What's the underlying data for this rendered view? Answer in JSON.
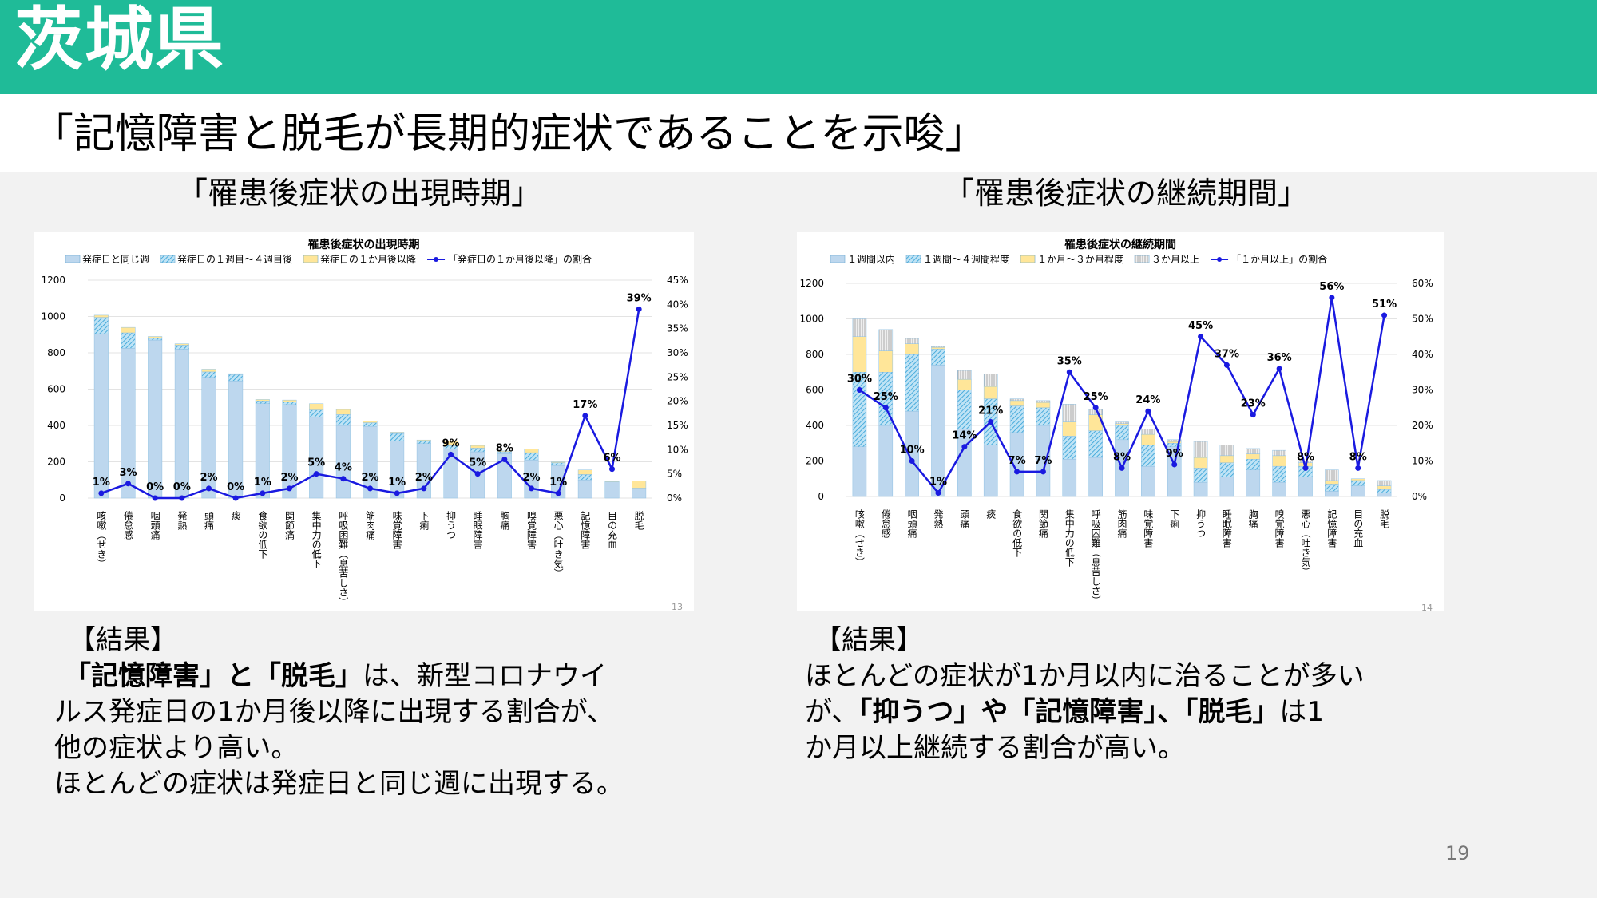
{
  "header": {
    "prefecture": "茨城県",
    "slide_title": "「記憶障害と脱毛が長期的症状であることを示唆」"
  },
  "left_section_title": "「罹患後症状の出現時期」",
  "right_section_title": "「罹患後症状の継続期間」",
  "chart_data": [
    {
      "type": "bar",
      "stacked": true,
      "title": "罹患後症状の出現時期",
      "categories": [
        "咳嗽（せき）",
        "倦怠感",
        "咽頭痛",
        "発熱",
        "頭痛",
        "痰",
        "食欲の低下",
        "関節痛",
        "集中力の低下",
        "呼吸困難（息苦しさ）",
        "筋肉痛",
        "味覚障害",
        "下痢",
        "抑うつ",
        "睡眠障害",
        "胸痛",
        "嗅覚障害",
        "悪心（吐き気）",
        "記憶障害",
        "目の充血",
        "脱毛"
      ],
      "series": [
        {
          "name": "発症日と同じ週",
          "color": "#bdd7ee",
          "values": [
            905,
            825,
            870,
            820,
            665,
            645,
            520,
            515,
            445,
            400,
            395,
            315,
            300,
            270,
            255,
            245,
            210,
            180,
            100,
            90,
            55
          ]
        },
        {
          "name": "発症日の１週目～４週目後",
          "color": "#5bc0de",
          "pattern": "hatch",
          "values": [
            90,
            85,
            10,
            22,
            30,
            35,
            15,
            15,
            40,
            60,
            20,
            40,
            15,
            20,
            20,
            10,
            40,
            15,
            30,
            0,
            0
          ]
        },
        {
          "name": "発症日の１か月後以降",
          "color": "#ffe699",
          "values": [
            12,
            30,
            10,
            8,
            15,
            5,
            8,
            10,
            35,
            28,
            10,
            8,
            5,
            25,
            15,
            5,
            20,
            5,
            25,
            5,
            40
          ]
        }
      ],
      "line": {
        "name": "「発症日の１か月後以降」の割合",
        "color": "#1a1ae0",
        "values": [
          1,
          3,
          0,
          0,
          2,
          0,
          1,
          2,
          5,
          4,
          2,
          1,
          2,
          9,
          5,
          8,
          2,
          1,
          17,
          6,
          39
        ],
        "labels": [
          "1%",
          "3%",
          "0%",
          "0%",
          "2%",
          "0%",
          "1%",
          "2%",
          "5%",
          "4%",
          "2%",
          "1%",
          "2%",
          "9%",
          "5%",
          "8%",
          "2%",
          "1%",
          "17%",
          "6%",
          "39%"
        ]
      },
      "ylim": [
        0,
        1200
      ],
      "yticks": [
        0,
        200,
        400,
        600,
        800,
        1000,
        1200
      ],
      "y2lim": [
        0,
        45
      ],
      "y2ticks": [
        "0%",
        "5%",
        "10%",
        "15%",
        "20%",
        "25%",
        "30%",
        "35%",
        "40%",
        "45%"
      ],
      "page_label": "13"
    },
    {
      "type": "bar",
      "stacked": true,
      "title": "罹患後症状の継続期間",
      "categories": [
        "咳嗽（せき）",
        "倦怠感",
        "咽頭痛",
        "発熱",
        "頭痛",
        "痰",
        "食欲の低下",
        "関節痛",
        "集中力の低下",
        "呼吸困難（息苦しさ）",
        "筋肉痛",
        "味覚障害",
        "下痢",
        "抑うつ",
        "睡眠障害",
        "胸痛",
        "嗅覚障害",
        "悪心（吐き気）",
        "記憶障害",
        "目の充血",
        "脱毛"
      ],
      "series": [
        {
          "name": "１週間以内",
          "color": "#bdd7ee",
          "values": [
            280,
            400,
            480,
            740,
            380,
            290,
            360,
            400,
            210,
            220,
            320,
            170,
            280,
            80,
            110,
            150,
            80,
            110,
            30,
            60,
            20
          ]
        },
        {
          "name": "１週間～４週間程度",
          "color": "#5bc0de",
          "pattern": "hatch",
          "values": [
            420,
            300,
            320,
            90,
            220,
            260,
            150,
            100,
            130,
            150,
            80,
            120,
            20,
            80,
            80,
            60,
            90,
            60,
            40,
            30,
            20
          ]
        },
        {
          "name": "１か月～３か月程度",
          "color": "#ffe699",
          "values": [
            200,
            120,
            60,
            10,
            60,
            70,
            30,
            30,
            80,
            90,
            10,
            60,
            10,
            60,
            40,
            30,
            60,
            20,
            20,
            10,
            20
          ]
        },
        {
          "name": "３か月以上",
          "color": "#d9d9d9",
          "pattern": "vlines",
          "values": [
            100,
            120,
            30,
            5,
            50,
            70,
            10,
            10,
            100,
            30,
            10,
            30,
            10,
            90,
            60,
            30,
            30,
            10,
            60,
            0,
            30
          ]
        }
      ],
      "line": {
        "name": "「１か月以上」の割合",
        "color": "#1a1ae0",
        "values": [
          30,
          25,
          10,
          1,
          14,
          21,
          7,
          7,
          35,
          25,
          8,
          24,
          9,
          45,
          37,
          23,
          36,
          8,
          56,
          8,
          51
        ],
        "labels": [
          "30%",
          "25%",
          "10%",
          "1%",
          "14%",
          "21%",
          "7%",
          "7%",
          "35%",
          "25%",
          "8%",
          "24%",
          "9%",
          "45%",
          "37%",
          "23%",
          "36%",
          "8%",
          "56%",
          "8%",
          "51%"
        ]
      },
      "ylim": [
        0,
        1200
      ],
      "yticks": [
        0,
        200,
        400,
        600,
        800,
        1000,
        1200
      ],
      "y2lim": [
        0,
        60
      ],
      "y2ticks": [
        "0%",
        "10%",
        "20%",
        "30%",
        "40%",
        "50%",
        "60%"
      ],
      "page_label": "14"
    }
  ],
  "left_result": {
    "heading": "【結果】",
    "bold1": "「記憶障害」と「脱毛」",
    "text1": "は、新型コロナウイ",
    "text2": "ルス発症日の1か月後以降に出現する割合が、",
    "text3": "他の症状より高い。",
    "text4": "ほとんどの症状は発症日と同じ週に出現する。"
  },
  "right_result": {
    "heading": "【結果】",
    "text1": "ほとんどの症状が1か月以内に治ることが多い",
    "text2a": "が、",
    "bold1": "「抑うつ」や「記憶障害」、「脱毛」",
    "text2b": "は1",
    "text3": "か月以上継続する割合が高い。"
  },
  "page_number": "19"
}
